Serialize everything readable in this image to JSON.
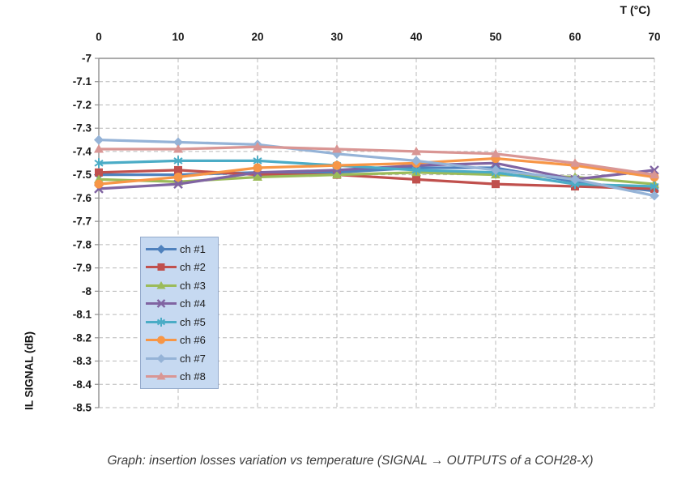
{
  "page": {
    "caption": "Graph: insertion losses variation vs temperature (SIGNAL → OUTPUTS of a COH28-X)"
  },
  "chart_data": {
    "type": "line",
    "title": "",
    "xlabel": "T (°C)",
    "ylabel": "IL SIGNAL (dB)",
    "x": [
      0,
      10,
      20,
      30,
      40,
      50,
      60,
      70
    ],
    "x_ticks": [
      "0",
      "10",
      "20",
      "30",
      "40",
      "50",
      "60",
      "70"
    ],
    "y_ticks": [
      "-7",
      "-7.1",
      "-7.2",
      "-7.3",
      "-7.4",
      "-7.5",
      "-7.6",
      "-7.7",
      "-7.8",
      "-7.9",
      "-8",
      "-8.1",
      "-8.2",
      "-8.3",
      "-8.4",
      "-8.5"
    ],
    "xlim": [
      0,
      70
    ],
    "ylim": [
      -8.5,
      -7
    ],
    "grid": "dashed",
    "legend_position": "inside-left",
    "legend_fill": "#c6d9f1",
    "axis_color": "#8f8f8f",
    "grid_color": "#b8b8b8",
    "series": [
      {
        "name": "ch #1",
        "color": "#4F81BD",
        "marker": "diamond",
        "values": [
          -7.5,
          -7.5,
          -7.49,
          -7.49,
          -7.47,
          -7.47,
          -7.53,
          -7.57
        ]
      },
      {
        "name": "ch #2",
        "color": "#C0504D",
        "marker": "square",
        "values": [
          -7.49,
          -7.48,
          -7.5,
          -7.5,
          -7.52,
          -7.54,
          -7.55,
          -7.56
        ]
      },
      {
        "name": "ch #3",
        "color": "#9BBB59",
        "marker": "triangle",
        "values": [
          -7.52,
          -7.53,
          -7.51,
          -7.5,
          -7.49,
          -7.5,
          -7.51,
          -7.54
        ]
      },
      {
        "name": "ch #4",
        "color": "#8064A2",
        "marker": "xcross",
        "values": [
          -7.56,
          -7.54,
          -7.49,
          -7.48,
          -7.46,
          -7.45,
          -7.52,
          -7.48
        ]
      },
      {
        "name": "ch #5",
        "color": "#4BACC6",
        "marker": "asterisk",
        "values": [
          -7.45,
          -7.44,
          -7.44,
          -7.46,
          -7.48,
          -7.49,
          -7.54,
          -7.55
        ]
      },
      {
        "name": "ch #6",
        "color": "#F79646",
        "marker": "circle",
        "values": [
          -7.54,
          -7.51,
          -7.47,
          -7.46,
          -7.45,
          -7.43,
          -7.46,
          -7.51
        ]
      },
      {
        "name": "ch #7",
        "color": "#95B3D7",
        "marker": "diamond",
        "values": [
          -7.35,
          -7.36,
          -7.37,
          -7.41,
          -7.44,
          -7.48,
          -7.52,
          -7.59
        ]
      },
      {
        "name": "ch #8",
        "color": "#D99694",
        "marker": "triangle",
        "values": [
          -7.39,
          -7.39,
          -7.38,
          -7.39,
          -7.4,
          -7.41,
          -7.45,
          -7.5
        ]
      }
    ]
  }
}
